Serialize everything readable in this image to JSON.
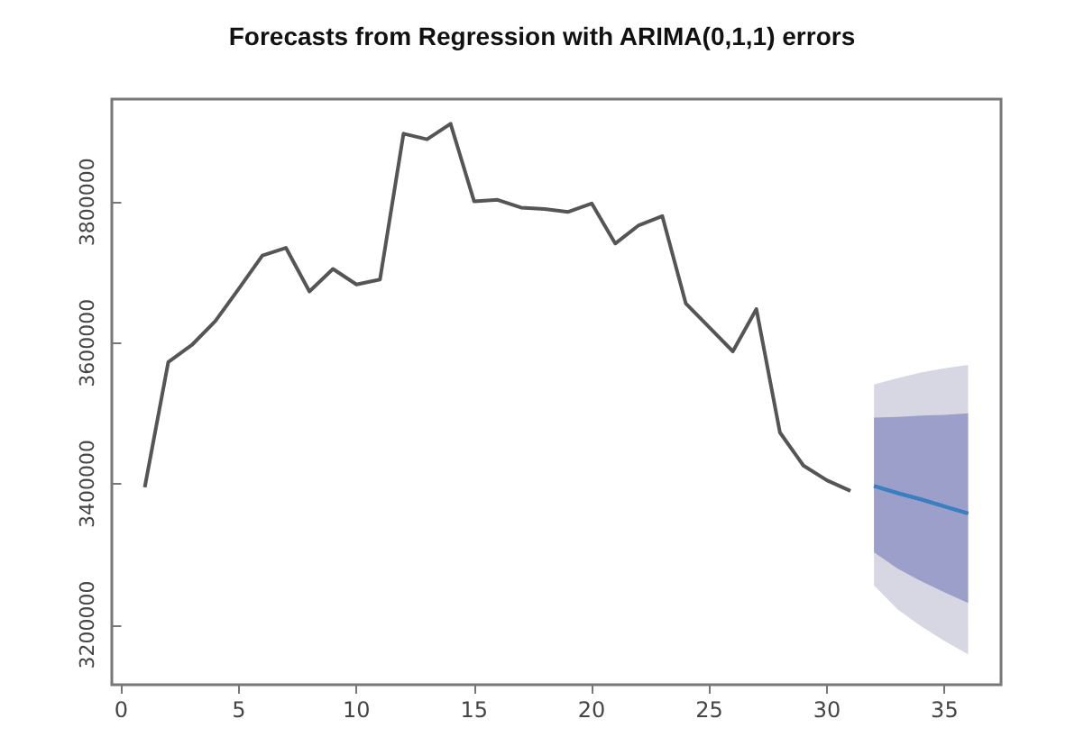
{
  "chart_data": {
    "type": "line",
    "title": "Forecasts from Regression with ARIMA(0,1,1) errors",
    "xlim": [
      -0.4,
      37.4
    ],
    "xticks": [
      0,
      5,
      10,
      15,
      20,
      25,
      30,
      35
    ],
    "ylim": [
      3115000,
      3946000
    ],
    "yticks": [
      3200000,
      3400000,
      3600000,
      3800000
    ],
    "grid": false,
    "marker": "none",
    "line_style": "solid",
    "series": [
      {
        "color": "#555555",
        "x": [
          1,
          2,
          3,
          4,
          5,
          6,
          7,
          8,
          9,
          10,
          11,
          12,
          13,
          14,
          15,
          16,
          17,
          18,
          19,
          20,
          21,
          22,
          23,
          24,
          25,
          26,
          27,
          28,
          29,
          30,
          31
        ],
        "values": [
          3395000,
          3573000,
          3597000,
          3631000,
          3677000,
          3724000,
          3735000,
          3673000,
          3705000,
          3683000,
          3690000,
          3897000,
          3889000,
          3911000,
          3801000,
          3803000,
          3792000,
          3790000,
          3786000,
          3798000,
          3741000,
          3767000,
          3780000,
          3656000,
          3622000,
          3588000,
          3648000,
          3473000,
          3426000,
          3405000,
          3390000
        ]
      },
      {
        "color": "#3a7fc0",
        "x": [
          32,
          33,
          34,
          35,
          36
        ],
        "values": [
          3397000,
          3387000,
          3378000,
          3368000,
          3358000
        ],
        "lower": [
          3256000,
          3222000,
          3198000,
          3177000,
          3158000
        ],
        "upper": [
          3541000,
          3550000,
          3558000,
          3564000,
          3569000
        ]
      },
      {
        "color": "#3a7fc0",
        "x": [
          32,
          33,
          34,
          35,
          36
        ],
        "values": [
          3397000,
          3387000,
          3378000,
          3368000,
          3358000
        ],
        "lower": [
          3303000,
          3280000,
          3262000,
          3246000,
          3231000
        ],
        "upper": [
          3494000,
          3495000,
          3497000,
          3498000,
          3500000
        ]
      }
    ]
  }
}
